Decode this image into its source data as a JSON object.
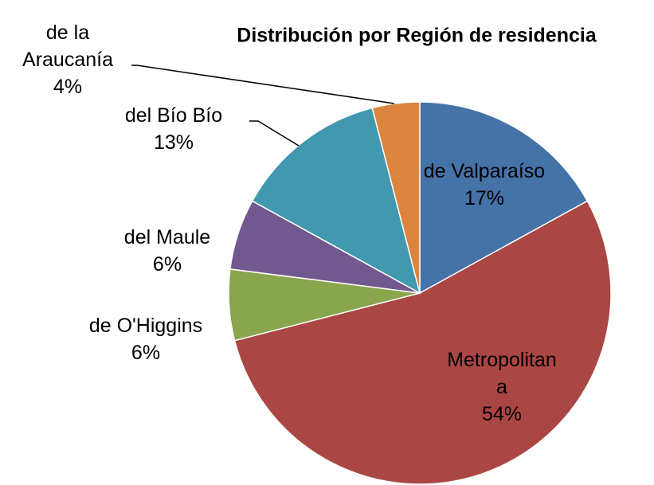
{
  "chart_data": {
    "type": "pie",
    "title": "Distribución por Región de residencia",
    "categories": [
      "de Valparaíso",
      "Metropolitana",
      "de O'Higgins",
      "del Maule",
      "del Bío Bío",
      "de la Araucanía"
    ],
    "values": [
      17,
      54,
      6,
      6,
      13,
      4
    ],
    "value_labels": [
      "17%",
      "54%",
      "6%",
      "6%",
      "13%",
      "4%"
    ],
    "colors": [
      "#4572a7",
      "#aa4643",
      "#89a54e",
      "#71588f",
      "#4198af",
      "#db843d"
    ]
  }
}
